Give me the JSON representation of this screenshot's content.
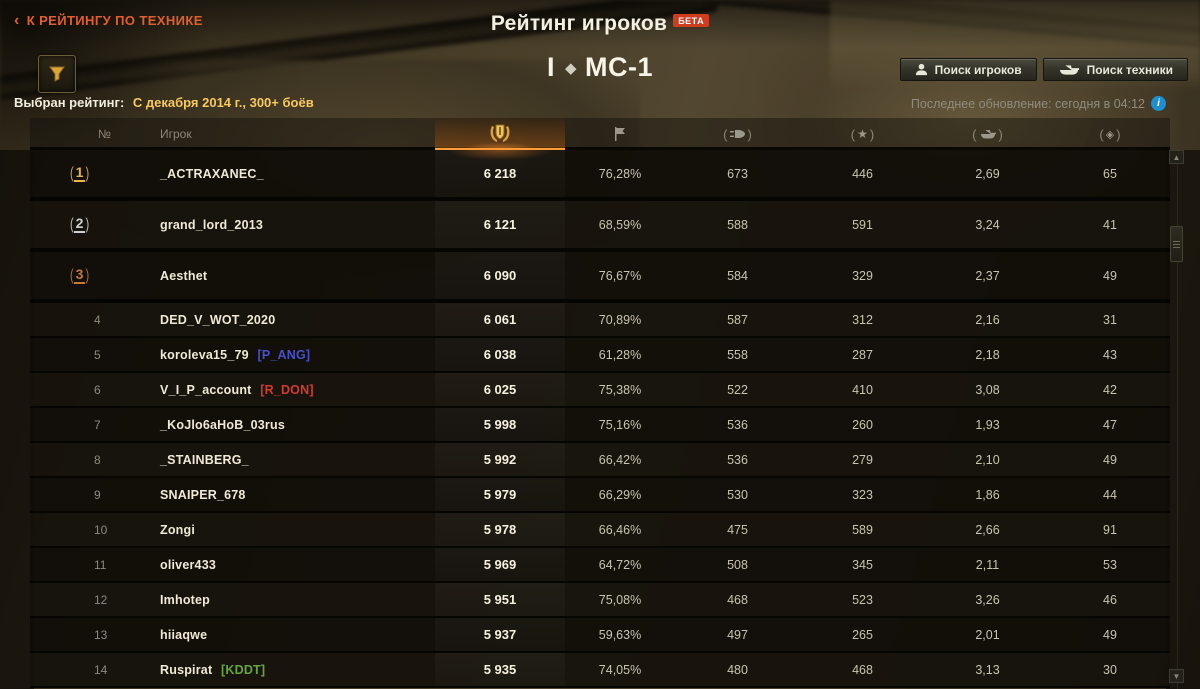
{
  "header": {
    "back_link": "К РЕЙТИНГУ ПО ТЕХНИКЕ",
    "title": "Рейтинг игроков",
    "beta_badge": "БЕТА",
    "vehicle": {
      "tier": "I",
      "class_icon": "light-tank-diamond-icon",
      "name": "МС-1"
    },
    "search_players_button": "Поиск игроков",
    "search_vehicles_button": "Поиск техники",
    "filter_label": "Выбран рейтинг:",
    "filter_value": "С декабря 2014 г., 300+ боёв",
    "last_update": "Последнее обновление: сегодня в 04:12",
    "info_icon": "i"
  },
  "table": {
    "columns": [
      {
        "label": "№",
        "type": "text"
      },
      {
        "label": "Игрок",
        "type": "text"
      },
      {
        "icon": "rating-medal-icon",
        "selected": true
      },
      {
        "icon": "flag-icon"
      },
      {
        "icon": "shell-icon"
      },
      {
        "icon": "star-icon"
      },
      {
        "icon": "tank-destroyed-icon"
      },
      {
        "icon": "scout-diamond-icon"
      }
    ],
    "rows": [
      {
        "rank": "1",
        "medal": "gold",
        "player": "_ACTRAXANEC_",
        "clan": "",
        "clan_color": "",
        "rating": "6 218",
        "win_percent": "76,28%",
        "stat1": "673",
        "stat2": "446",
        "stat3": "2,69",
        "stat4": "65"
      },
      {
        "rank": "2",
        "medal": "silver",
        "player": "grand_lord_2013",
        "clan": "",
        "clan_color": "",
        "rating": "6 121",
        "win_percent": "68,59%",
        "stat1": "588",
        "stat2": "591",
        "stat3": "3,24",
        "stat4": "41"
      },
      {
        "rank": "3",
        "medal": "bronze",
        "player": "Aesthet",
        "clan": "",
        "clan_color": "",
        "rating": "6 090",
        "win_percent": "76,67%",
        "stat1": "584",
        "stat2": "329",
        "stat3": "2,37",
        "stat4": "49"
      },
      {
        "rank": "4",
        "medal": "",
        "player": "DED_V_WOT_2020",
        "clan": "",
        "clan_color": "",
        "rating": "6 061",
        "win_percent": "70,89%",
        "stat1": "587",
        "stat2": "312",
        "stat3": "2,16",
        "stat4": "31"
      },
      {
        "rank": "5",
        "medal": "",
        "player": "koroleva15_79",
        "clan": "[P_ANG]",
        "clan_color": "#4750cc",
        "rating": "6 038",
        "win_percent": "61,28%",
        "stat1": "558",
        "stat2": "287",
        "stat3": "2,18",
        "stat4": "43"
      },
      {
        "rank": "6",
        "medal": "",
        "player": "V_I_P_account",
        "clan": "[R_DON]",
        "clan_color": "#d53a2e",
        "rating": "6 025",
        "win_percent": "75,38%",
        "stat1": "522",
        "stat2": "410",
        "stat3": "3,08",
        "stat4": "42"
      },
      {
        "rank": "7",
        "medal": "",
        "player": "_KoJlo6aHoB_03rus",
        "clan": "",
        "clan_color": "",
        "rating": "5 998",
        "win_percent": "75,16%",
        "stat1": "536",
        "stat2": "260",
        "stat3": "1,93",
        "stat4": "47"
      },
      {
        "rank": "8",
        "medal": "",
        "player": "_STAINBERG_",
        "clan": "",
        "clan_color": "",
        "rating": "5 992",
        "win_percent": "66,42%",
        "stat1": "536",
        "stat2": "279",
        "stat3": "2,10",
        "stat4": "49"
      },
      {
        "rank": "9",
        "medal": "",
        "player": "SNAIPER_678",
        "clan": "",
        "clan_color": "",
        "rating": "5 979",
        "win_percent": "66,29%",
        "stat1": "530",
        "stat2": "323",
        "stat3": "1,86",
        "stat4": "44"
      },
      {
        "rank": "10",
        "medal": "",
        "player": "Zongi",
        "clan": "",
        "clan_color": "",
        "rating": "5 978",
        "win_percent": "66,46%",
        "stat1": "475",
        "stat2": "589",
        "stat3": "2,66",
        "stat4": "91"
      },
      {
        "rank": "11",
        "medal": "",
        "player": "oliver433",
        "clan": "",
        "clan_color": "",
        "rating": "5 969",
        "win_percent": "64,72%",
        "stat1": "508",
        "stat2": "345",
        "stat3": "2,11",
        "stat4": "53"
      },
      {
        "rank": "12",
        "medal": "",
        "player": "Imhotep",
        "clan": "",
        "clan_color": "",
        "rating": "5 951",
        "win_percent": "75,08%",
        "stat1": "468",
        "stat2": "523",
        "stat3": "3,26",
        "stat4": "46"
      },
      {
        "rank": "13",
        "medal": "",
        "player": "hiiaqwe",
        "clan": "",
        "clan_color": "",
        "rating": "5 937",
        "win_percent": "59,63%",
        "stat1": "497",
        "stat2": "265",
        "stat3": "2,01",
        "stat4": "49"
      },
      {
        "rank": "14",
        "medal": "",
        "player": "Ruspirat",
        "clan": "[KDDT]",
        "clan_color": "#64a83d",
        "rating": "5 935",
        "win_percent": "74,05%",
        "stat1": "480",
        "stat2": "468",
        "stat3": "3,13",
        "stat4": "30"
      }
    ]
  },
  "colors": {
    "accent_orange": "#ff9d3a",
    "back_link_orange": "#e25f2b",
    "filter_gold": "#f8c95c",
    "beta_red": "#cf3c1e",
    "info_blue": "#1d8fd0",
    "medal_gold": "#e7b34a",
    "medal_silver": "#ccd1d6",
    "medal_bronze": "#c27a36"
  }
}
